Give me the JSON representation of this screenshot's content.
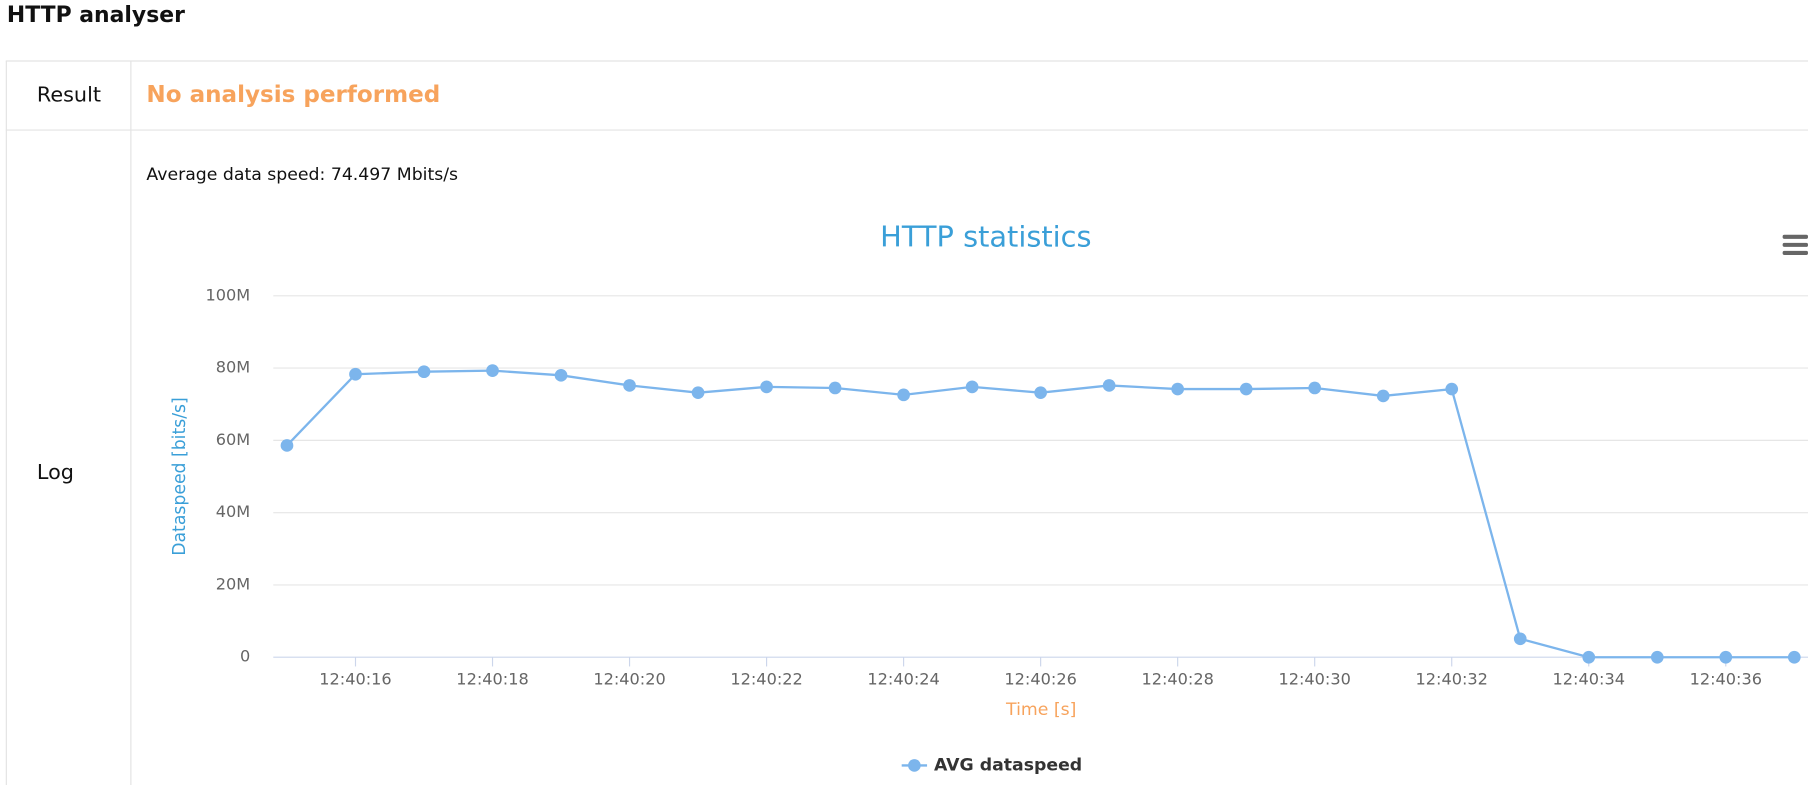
{
  "header": {
    "title": "HTTP analyser"
  },
  "table": {
    "rows": [
      [
        "Result",
        "No analysis performed"
      ],
      [
        "Log",
        "Average data speed: 74.497 Mbits/s"
      ]
    ]
  },
  "chart_data": {
    "type": "line",
    "title": "HTTP statistics",
    "x_label": "Time [s]",
    "y_label": "Dataspeed [bits/s]",
    "x": [
      "12:40:15",
      "12:40:16",
      "12:40:17",
      "12:40:18",
      "12:40:19",
      "12:40:20",
      "12:40:21",
      "12:40:22",
      "12:40:23",
      "12:40:24",
      "12:40:25",
      "12:40:26",
      "12:40:27",
      "12:40:28",
      "12:40:29",
      "12:40:30",
      "12:40:31",
      "12:40:32",
      "12:40:33",
      "12:40:34",
      "12:40:35",
      "12:40:36",
      "12:40:37"
    ],
    "series": [
      {
        "name": "AVG dataspeed",
        "color": "#7cb5ec",
        "values": [
          58600000,
          78300000,
          79000000,
          79300000,
          78000000,
          75200000,
          73200000,
          74800000,
          74500000,
          72600000,
          74800000,
          73200000,
          75200000,
          74200000,
          74200000,
          74500000,
          72300000,
          74200000,
          5100000,
          0,
          0,
          0,
          0
        ]
      }
    ],
    "xlim": [
      "12:40:14.8",
      "12:40:37.2"
    ],
    "xticks": [
      "12:40:16",
      "12:40:18",
      "12:40:20",
      "12:40:22",
      "12:40:24",
      "12:40:26",
      "12:40:28",
      "12:40:30",
      "12:40:32",
      "12:40:34",
      "12:40:36"
    ],
    "ylim": [
      0,
      100000000
    ],
    "yticks": [
      0,
      {
        "value": 20000000,
        "label": "20M"
      },
      {
        "value": 40000000,
        "label": "40M"
      },
      {
        "value": 60000000,
        "label": "60M"
      },
      {
        "value": 80000000,
        "label": "80M"
      },
      {
        "value": 100000000,
        "label": "100M"
      }
    ],
    "grid": true
  }
}
